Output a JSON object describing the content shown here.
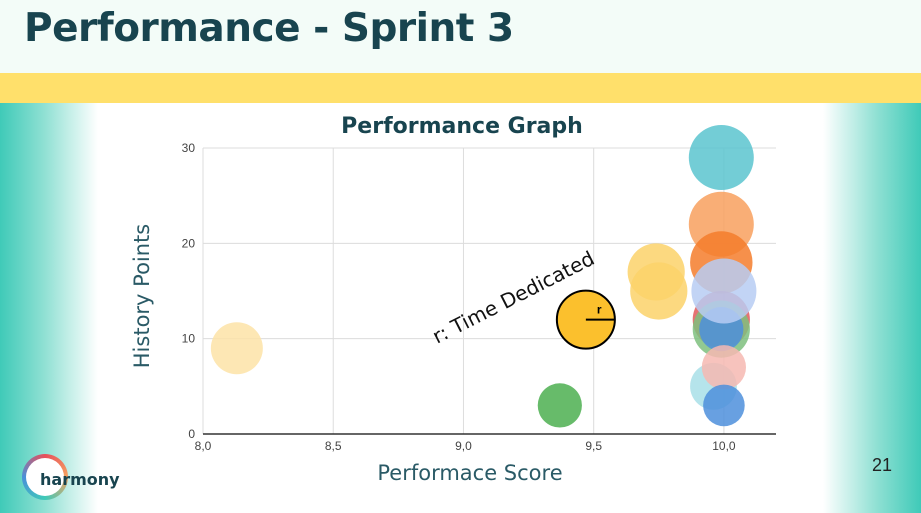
{
  "slide": {
    "title": "Performance - Sprint 3",
    "page_number": "21",
    "logo_text": "harmony",
    "colors": {
      "title": "#18444f",
      "band": "#ffe06b",
      "side": "#3fcab8"
    }
  },
  "chart_data": {
    "type": "bubble",
    "title": "Performance Graph",
    "xlabel": "Performace Score",
    "ylabel": "History Points",
    "xlim": [
      8.0,
      10.2
    ],
    "ylim": [
      0,
      30
    ],
    "xticks": [
      8.0,
      8.5,
      9.0,
      9.5,
      10.0
    ],
    "xtick_labels": [
      "8,0",
      "8,5",
      "9,0",
      "9,5",
      "10,0"
    ],
    "yticks": [
      0,
      10,
      20,
      30
    ],
    "ytick_labels": [
      "0",
      "10",
      "20",
      "30"
    ],
    "grid": true,
    "annotation": {
      "text": "r: Time Dedicated",
      "marker_label": "r",
      "x": 9.47,
      "y": 12
    },
    "points": [
      {
        "x": 8.13,
        "y": 9,
        "r": 1.0,
        "color": "#fde3a7"
      },
      {
        "x": 9.37,
        "y": 3,
        "r": 0.85,
        "color": "#4caf50"
      },
      {
        "x": 9.74,
        "y": 17,
        "r": 1.1,
        "color": "#fbd26a"
      },
      {
        "x": 9.75,
        "y": 15,
        "r": 1.1,
        "color": "#fbd26a"
      },
      {
        "x": 9.96,
        "y": 5,
        "r": 0.9,
        "color": "#a8dfe8"
      },
      {
        "x": 9.99,
        "y": 29,
        "r": 1.25,
        "color": "#5bc4cf"
      },
      {
        "x": 9.99,
        "y": 22,
        "r": 1.25,
        "color": "#f8a05e"
      },
      {
        "x": 9.99,
        "y": 18,
        "r": 1.2,
        "color": "#f57c2b"
      },
      {
        "x": 9.99,
        "y": 12,
        "r": 1.1,
        "color": "#e25b5b"
      },
      {
        "x": 9.99,
        "y": 11,
        "r": 1.1,
        "color": "#7ec07e"
      },
      {
        "x": 9.99,
        "y": 11,
        "r": 0.85,
        "color": "#4d8fdc"
      },
      {
        "x": 10.0,
        "y": 15,
        "r": 1.25,
        "color": "#b7cdf3"
      },
      {
        "x": 10.0,
        "y": 7,
        "r": 0.85,
        "color": "#f6b8b1"
      },
      {
        "x": 10.0,
        "y": 3,
        "r": 0.8,
        "color": "#4d8fdc"
      }
    ]
  }
}
